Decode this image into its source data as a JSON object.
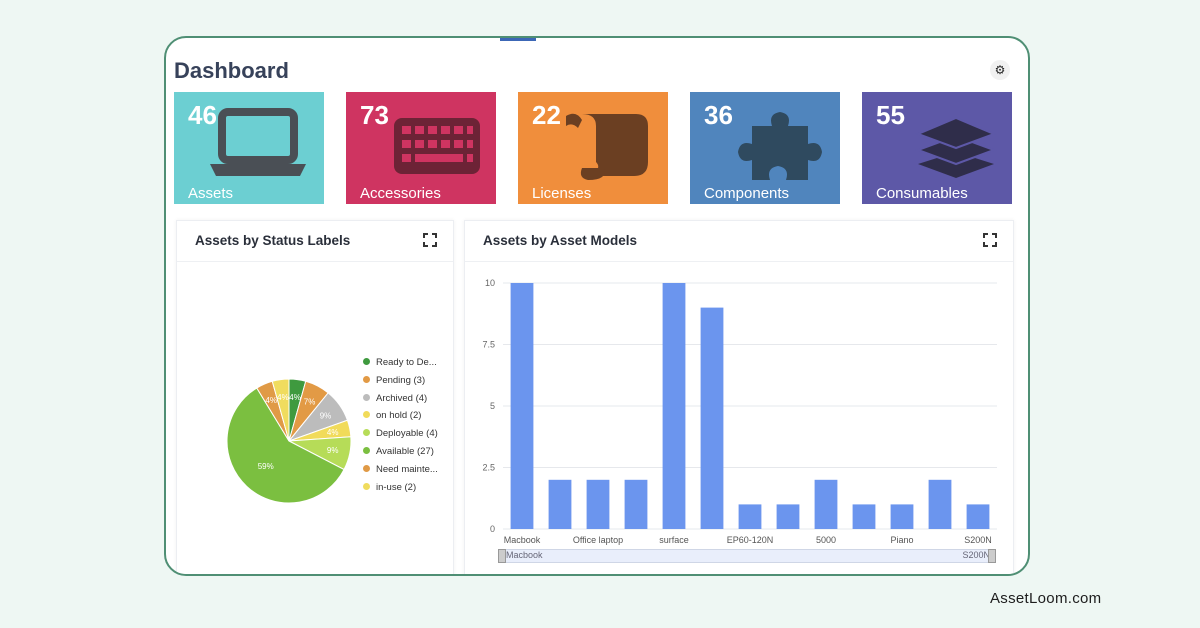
{
  "page": {
    "title": "Dashboard",
    "settings_icon": "gear-icon"
  },
  "tiles": [
    {
      "count": "46",
      "label": "Assets",
      "color": "#6ccfd2",
      "icon": "laptop-icon"
    },
    {
      "count": "73",
      "label": "Accessories",
      "color": "#cf3461",
      "icon": "keyboard-icon"
    },
    {
      "count": "22",
      "label": "Licenses",
      "color": "#f08e3c",
      "icon": "scroll-icon"
    },
    {
      "count": "36",
      "label": "Components",
      "color": "#5085bd",
      "icon": "puzzle-icon"
    },
    {
      "count": "55",
      "label": "Consumables",
      "color": "#5d58a7",
      "icon": "layers-icon"
    }
  ],
  "status_panel": {
    "title": "Assets by Status Labels",
    "expand_icon": "expand-icon"
  },
  "models_panel": {
    "title": "Assets by Asset Models",
    "expand_icon": "expand-icon",
    "range_start": "Macbook",
    "range_end": "S200N"
  },
  "legend": [
    {
      "label": "Ready to De...",
      "color": "#3f9a3f"
    },
    {
      "label": "Pending (3)",
      "color": "#e29a45"
    },
    {
      "label": "Archived (4)",
      "color": "#bcbcbc"
    },
    {
      "label": "on hold (2)",
      "color": "#f1db5a"
    },
    {
      "label": "Deployable (4)",
      "color": "#b6dc58"
    },
    {
      "label": "Available (27)",
      "color": "#7bbf40"
    },
    {
      "label": "Need mainte...",
      "color": "#e09a46"
    },
    {
      "label": "in-use (2)",
      "color": "#f0dc5e"
    }
  ],
  "watermark": "AssetLoom.com",
  "chart_data": [
    {
      "type": "pie",
      "title": "Assets by Status Labels",
      "slices": [
        {
          "name": "Ready to De...",
          "value": 2,
          "pct_label": "4%",
          "color": "#3f9a3f"
        },
        {
          "name": "Pending (3)",
          "value": 3,
          "pct_label": "7%",
          "color": "#e29a45"
        },
        {
          "name": "Archived (4)",
          "value": 4,
          "pct_label": "9%",
          "color": "#bcbcbc"
        },
        {
          "name": "on hold (2)",
          "value": 2,
          "pct_label": "4%",
          "color": "#f1db5a"
        },
        {
          "name": "Deployable (4)",
          "value": 4,
          "pct_label": "9%",
          "color": "#b6dc58"
        },
        {
          "name": "Available (27)",
          "value": 27,
          "pct_label": "59%",
          "color": "#7bbf40"
        },
        {
          "name": "Need mainte...",
          "value": 2,
          "pct_label": "4%",
          "color": "#e09a46"
        },
        {
          "name": "in-use (2)",
          "value": 2,
          "pct_label": "4%",
          "color": "#f0dc5e"
        }
      ]
    },
    {
      "type": "bar",
      "title": "Assets by Asset Models",
      "categories": [
        "Macbook",
        "",
        "Office laptop",
        "",
        "surface",
        "",
        "EP60-120N",
        "",
        "5000",
        "",
        "Piano",
        "",
        "S200N"
      ],
      "values": [
        10,
        2,
        2,
        2,
        10,
        9,
        1,
        1,
        2,
        1,
        1,
        2,
        1
      ],
      "ylim": [
        0,
        10
      ],
      "yticks": [
        "0",
        "2.5",
        "5",
        "7.5",
        "10"
      ],
      "grid": true,
      "color": "#6b95ee"
    }
  ]
}
